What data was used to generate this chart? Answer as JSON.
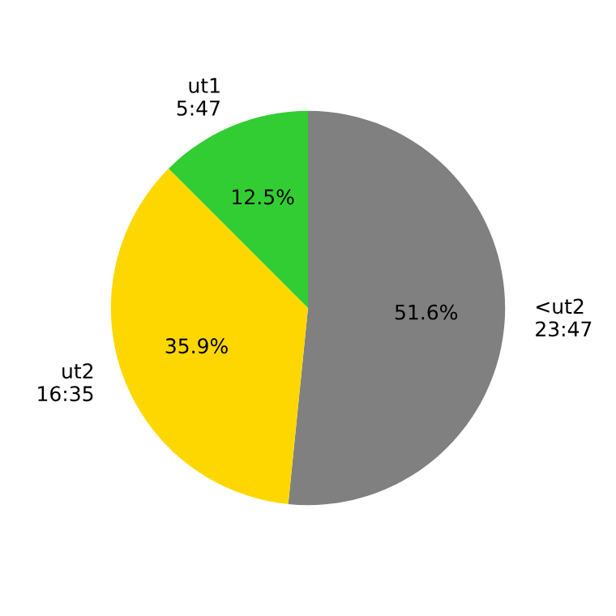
{
  "chart_data": {
    "type": "pie",
    "categories": [
      "<ut2\n23:47",
      "ut2\n16:35",
      "ut1\n5:47"
    ],
    "values": [
      51.6,
      35.9,
      12.5
    ],
    "value_labels": [
      "51.6%",
      "35.9%",
      "12.5%"
    ],
    "colors": [
      "#808080",
      "#ffd700",
      "#32cd32"
    ],
    "legend": false
  }
}
